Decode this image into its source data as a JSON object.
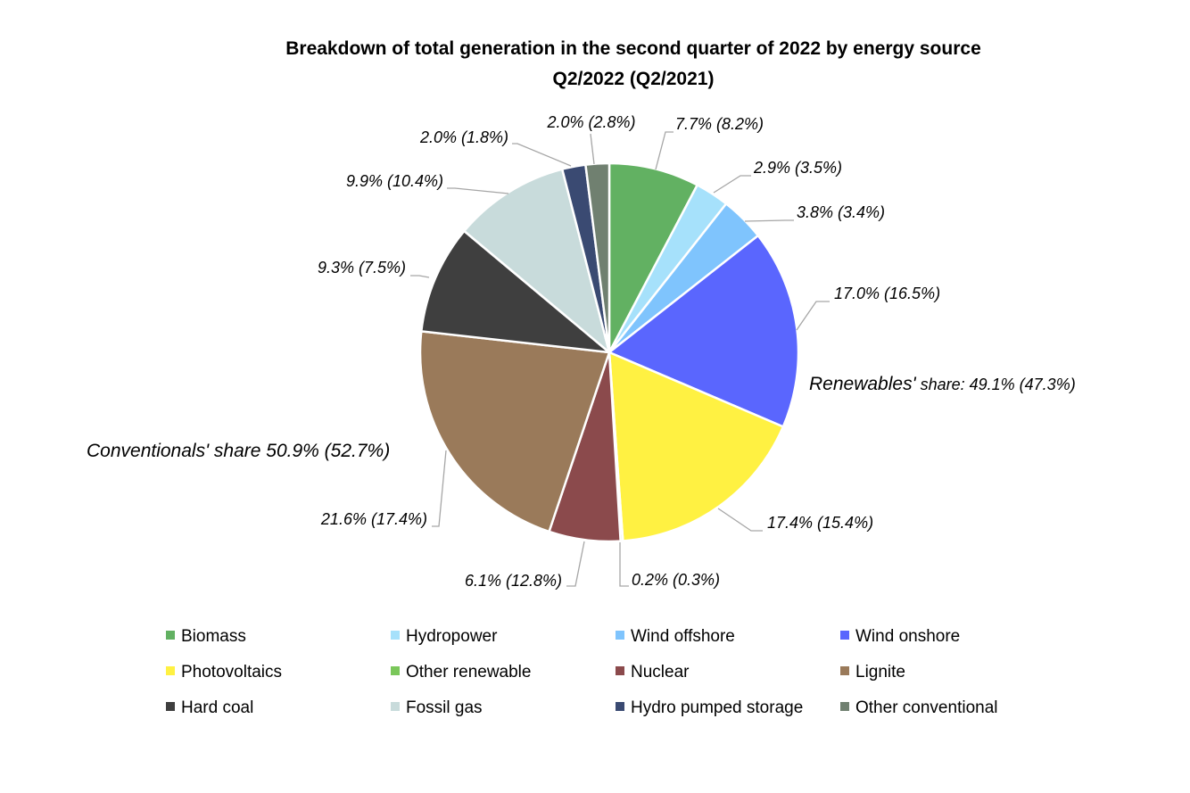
{
  "chart_data": {
    "type": "pie",
    "title": "Breakdown of total generation in the second quarter of 2022 by energy source",
    "subtitle": "Q2/2022 (Q2/2021)",
    "legend_position": "bottom",
    "slices": [
      {
        "name": "Biomass",
        "value": 7.7,
        "prev": 8.2,
        "label": "7.7% (8.2%)",
        "color": "#62b162"
      },
      {
        "name": "Hydropower",
        "value": 2.9,
        "prev": 3.5,
        "label": "2.9% (3.5%)",
        "color": "#a6e1fb"
      },
      {
        "name": "Wind offshore",
        "value": 3.8,
        "prev": 3.4,
        "label": "3.8% (3.4%)",
        "color": "#7fc4fd"
      },
      {
        "name": "Wind onshore",
        "value": 17.0,
        "prev": 16.5,
        "label": "17.0% (16.5%)",
        "color": "#5a66fe"
      },
      {
        "name": "Photovoltaics",
        "value": 17.4,
        "prev": 15.4,
        "label": "17.4% (15.4%)",
        "color": "#fff142"
      },
      {
        "name": "Other renewable",
        "value": 0.2,
        "prev": 0.3,
        "label": "0.2% (0.3%)",
        "color": "#7ac75a"
      },
      {
        "name": "Nuclear",
        "value": 6.1,
        "prev": 12.8,
        "label": "6.1% (12.8%)",
        "color": "#8b4a4c"
      },
      {
        "name": "Lignite",
        "value": 21.6,
        "prev": 17.4,
        "label": "21.6% (17.4%)",
        "color": "#9a7a5a"
      },
      {
        "name": "Hard coal",
        "value": 9.3,
        "prev": 7.5,
        "label": "9.3% (7.5%)",
        "color": "#3f3f3f"
      },
      {
        "name": "Fossil gas",
        "value": 9.9,
        "prev": 10.4,
        "label": "9.9% (10.4%)",
        "color": "#c8dbdb"
      },
      {
        "name": "Hydro pumped storage",
        "value": 2.0,
        "prev": 1.8,
        "label": "2.0% (1.8%)",
        "color": "#3a4a72"
      },
      {
        "name": "Other conventional",
        "value": 2.0,
        "prev": 2.8,
        "label": "2.0% (2.8%)",
        "color": "#708070"
      }
    ],
    "annotations": {
      "renewables_prefix": "Renewables'",
      "renewables_rest": " share: 49.1% (47.3%)",
      "conventionals": "Conventionals' share 50.9% (52.7%)"
    }
  }
}
